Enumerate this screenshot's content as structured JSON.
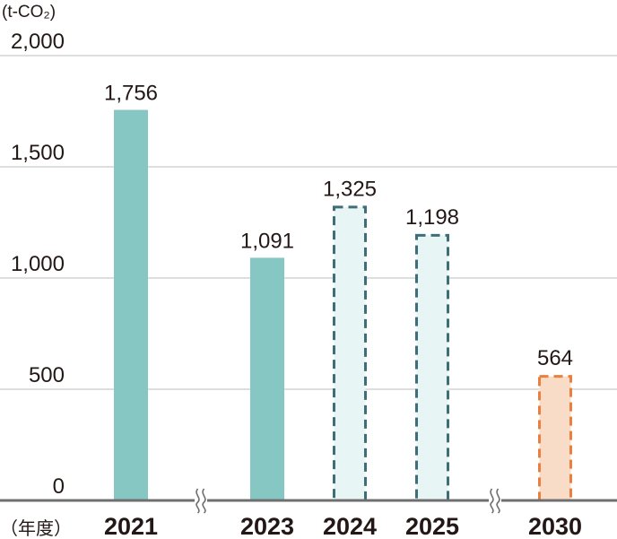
{
  "chart_data": {
    "type": "bar",
    "ylabel": "(t-CO₂)",
    "xlabel": "（年度）",
    "ylim": [
      0,
      2000
    ],
    "yticks": [
      0,
      500,
      1000,
      1500,
      2000
    ],
    "ytick_labels": [
      "0",
      "500",
      "1,000",
      "1,500",
      "2,000"
    ],
    "grid": true,
    "axis_break_marks": 2,
    "categories": [
      "2021",
      "2023",
      "2024",
      "2025",
      "2030"
    ],
    "values": [
      1756,
      1091,
      1325,
      1198,
      564
    ],
    "value_labels": [
      "1,756",
      "1,091",
      "1,325",
      "1,198",
      "564"
    ],
    "bar_styles": [
      "actual",
      "actual",
      "plan",
      "plan",
      "target"
    ],
    "colors": {
      "actual_fill": "#86c6c3",
      "plan_fill": "#e8f5f5",
      "plan_stroke": "#3d6e79",
      "target_fill": "#f8dcc8",
      "target_stroke": "#ea803f",
      "grid": "#c9c9c9",
      "axis": "#6f6f6f"
    }
  }
}
